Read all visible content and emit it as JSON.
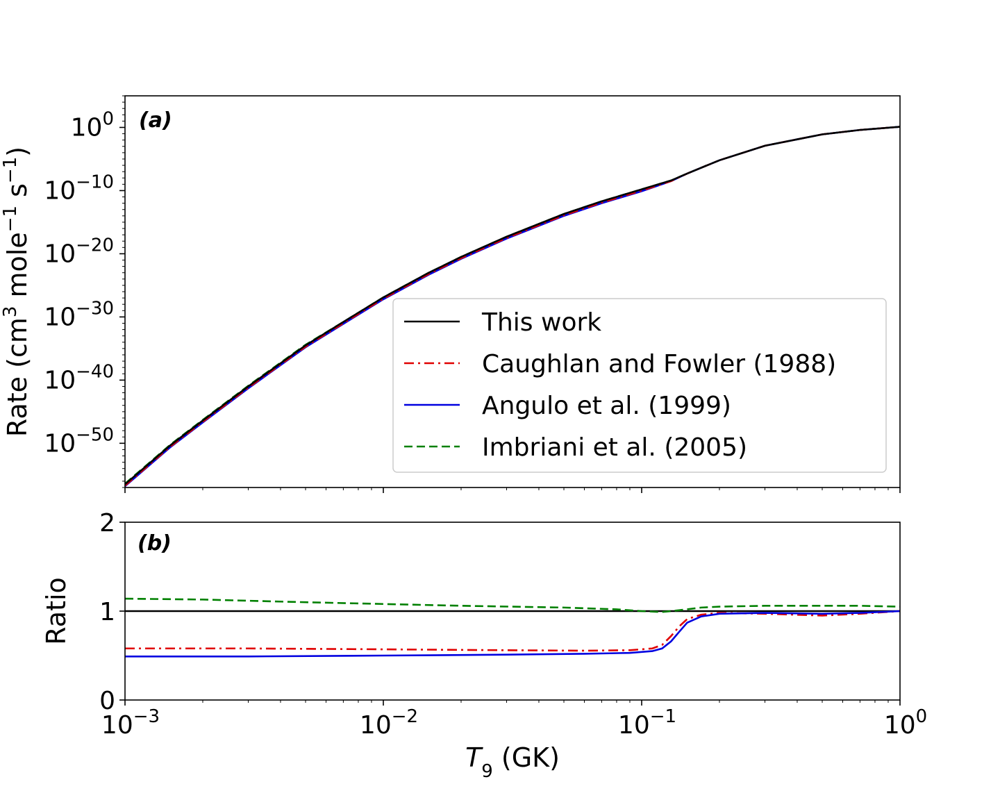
{
  "chart_data": [
    {
      "type": "line",
      "panel_label": "(a)",
      "ylabel": "Rate (cm³ mole⁻¹ s⁻¹)",
      "ylabel_parts": [
        "Rate (cm",
        "3",
        " mole",
        "−1",
        " s",
        "−1",
        ")"
      ],
      "xscale": "log",
      "yscale": "log",
      "xlim": [
        0.001,
        1
      ],
      "ylim": [
        1e-57,
        100000.0
      ],
      "yticks": [
        {
          "value": 1.0,
          "base": "10",
          "exp": "0"
        },
        {
          "value": 1e-10,
          "base": "10",
          "exp": "−10"
        },
        {
          "value": 1e-20,
          "base": "10",
          "exp": "−20"
        },
        {
          "value": 1e-30,
          "base": "10",
          "exp": "−30"
        },
        {
          "value": 1e-40,
          "base": "10",
          "exp": "−40"
        },
        {
          "value": 1e-50,
          "base": "10",
          "exp": "−50"
        }
      ],
      "legend_position": "lower-right",
      "series": [
        {
          "name": "This work",
          "color": "#000000",
          "dash": "solid",
          "x": [
            0.001,
            0.0015,
            0.002,
            0.003,
            0.005,
            0.007,
            0.01,
            0.015,
            0.02,
            0.03,
            0.05,
            0.07,
            0.1,
            0.13,
            0.15,
            0.2,
            0.3,
            0.5,
            0.7,
            1.0
          ],
          "log10_y": [
            -56.5,
            -50.3,
            -46.4,
            -41.0,
            -34.5,
            -30.8,
            -26.9,
            -23.0,
            -20.5,
            -17.3,
            -13.7,
            -11.7,
            -9.8,
            -8.4,
            -7.3,
            -5.2,
            -2.9,
            -1.1,
            -0.4,
            0.1
          ]
        },
        {
          "name": "Caughlan and Fowler (1988)",
          "color": "#e00000",
          "dash": "dashdot",
          "x": [
            0.001,
            0.0015,
            0.002,
            0.003,
            0.005,
            0.007,
            0.01,
            0.015,
            0.02,
            0.03,
            0.05,
            0.07,
            0.1,
            0.13,
            0.15,
            0.2,
            0.3,
            0.5,
            0.7,
            1.0
          ],
          "log10_y": [
            -56.7,
            -50.5,
            -46.6,
            -41.2,
            -34.7,
            -31.0,
            -27.1,
            -23.2,
            -20.7,
            -17.5,
            -13.9,
            -11.9,
            -10.0,
            -8.5,
            -7.3,
            -5.2,
            -2.9,
            -1.1,
            -0.4,
            0.1
          ]
        },
        {
          "name": "Angulo et al. (1999)",
          "color": "#0000e0",
          "dash": "solid",
          "x": [
            0.001,
            0.0015,
            0.002,
            0.003,
            0.005,
            0.007,
            0.01,
            0.015,
            0.02,
            0.03,
            0.05,
            0.07,
            0.1,
            0.13,
            0.15,
            0.2,
            0.3,
            0.5,
            0.7,
            1.0
          ],
          "log10_y": [
            -56.8,
            -50.6,
            -46.7,
            -41.3,
            -34.8,
            -31.1,
            -27.2,
            -23.3,
            -20.8,
            -17.6,
            -14.0,
            -12.0,
            -10.1,
            -8.5,
            -7.3,
            -5.2,
            -2.9,
            -1.1,
            -0.4,
            0.1
          ]
        },
        {
          "name": "Imbriani et al. (2005)",
          "color": "#008000",
          "dash": "dashed",
          "x": [
            0.001,
            0.0015,
            0.002,
            0.003,
            0.005,
            0.007,
            0.01,
            0.015,
            0.02,
            0.03,
            0.05,
            0.07,
            0.1,
            0.13,
            0.15,
            0.2,
            0.3,
            0.5,
            0.7,
            1.0
          ],
          "log10_y": [
            -56.4,
            -50.2,
            -46.3,
            -40.9,
            -34.4,
            -30.8,
            -26.9,
            -23.0,
            -20.5,
            -17.3,
            -13.7,
            -11.7,
            -9.8,
            -8.4,
            -7.3,
            -5.2,
            -2.9,
            -1.1,
            -0.4,
            0.1
          ]
        }
      ]
    },
    {
      "type": "line",
      "panel_label": "(b)",
      "ylabel": "Ratio",
      "xlabel": "T₉ (GK)",
      "xlabel_parts": {
        "symbol": "T",
        "subscript": "9",
        "unit": " (GK)"
      },
      "xscale": "log",
      "xlim": [
        0.001,
        1
      ],
      "ylim": [
        0,
        2
      ],
      "yticks": [
        {
          "value": 0,
          "label": "0"
        },
        {
          "value": 1,
          "label": "1"
        },
        {
          "value": 2,
          "label": "2"
        }
      ],
      "xticks": [
        {
          "value": 0.001,
          "base": "10",
          "exp": "−3"
        },
        {
          "value": 0.01,
          "base": "10",
          "exp": "−2"
        },
        {
          "value": 0.1,
          "base": "10",
          "exp": "−1"
        },
        {
          "value": 1,
          "base": "10",
          "exp": "0"
        }
      ],
      "series": [
        {
          "name": "This work",
          "color": "#000000",
          "dash": "solid",
          "x": [
            0.001,
            1.0
          ],
          "y": [
            1.0,
            1.0
          ]
        },
        {
          "name": "Caughlan and Fowler (1988)",
          "color": "#e00000",
          "dash": "dashdot",
          "x": [
            0.001,
            0.003,
            0.01,
            0.03,
            0.06,
            0.09,
            0.11,
            0.12,
            0.13,
            0.14,
            0.15,
            0.17,
            0.2,
            0.3,
            0.5,
            0.7,
            1.0
          ],
          "y": [
            0.58,
            0.58,
            0.57,
            0.56,
            0.555,
            0.56,
            0.58,
            0.62,
            0.72,
            0.83,
            0.91,
            0.96,
            0.98,
            0.97,
            0.95,
            0.97,
            1.0
          ]
        },
        {
          "name": "Angulo et al. (1999)",
          "color": "#0000e0",
          "dash": "solid",
          "x": [
            0.001,
            0.003,
            0.01,
            0.03,
            0.06,
            0.09,
            0.11,
            0.12,
            0.13,
            0.14,
            0.15,
            0.17,
            0.2,
            0.3,
            0.5,
            0.7,
            1.0
          ],
          "y": [
            0.49,
            0.49,
            0.5,
            0.51,
            0.52,
            0.53,
            0.55,
            0.58,
            0.66,
            0.77,
            0.87,
            0.94,
            0.97,
            0.98,
            0.97,
            0.98,
            1.0
          ]
        },
        {
          "name": "Imbriani et al. (2005)",
          "color": "#008000",
          "dash": "dashed",
          "x": [
            0.001,
            0.002,
            0.005,
            0.01,
            0.02,
            0.05,
            0.08,
            0.1,
            0.12,
            0.14,
            0.17,
            0.2,
            0.3,
            0.5,
            0.7,
            1.0
          ],
          "y": [
            1.14,
            1.13,
            1.1,
            1.08,
            1.06,
            1.04,
            1.02,
            1.0,
            0.99,
            1.01,
            1.04,
            1.05,
            1.06,
            1.06,
            1.06,
            1.05
          ]
        }
      ]
    }
  ]
}
